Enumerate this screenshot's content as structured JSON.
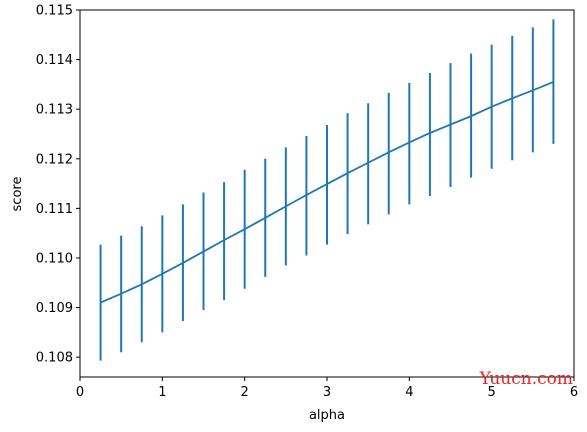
{
  "chart_data": {
    "type": "line",
    "xlabel": "alpha",
    "ylabel": "score",
    "xlim": [
      0,
      6
    ],
    "ylim": [
      0.1076,
      0.115
    ],
    "xticks": [
      0,
      1,
      2,
      3,
      4,
      5,
      6
    ],
    "yticks": [
      0.108,
      0.109,
      0.11,
      0.111,
      0.112,
      0.113,
      0.114,
      0.115
    ],
    "ytick_labels": [
      "0.108",
      "0.109",
      "0.110",
      "0.111",
      "0.112",
      "0.113",
      "0.114",
      "0.115"
    ],
    "grid": false,
    "line_color": "#1f77b4",
    "series": [
      {
        "x": [
          0.25,
          0.5,
          0.75,
          1.0,
          1.25,
          1.5,
          1.75,
          2.0,
          2.25,
          2.5,
          2.75,
          3.0,
          3.25,
          3.5,
          3.75,
          4.0,
          4.25,
          4.5,
          4.75,
          5.0,
          5.25,
          5.5,
          5.75
        ],
        "y": [
          0.1091,
          0.10928,
          0.10947,
          0.10968,
          0.1099,
          0.11013,
          0.11036,
          0.11058,
          0.11081,
          0.11104,
          0.11127,
          0.11149,
          0.11171,
          0.11192,
          0.11213,
          0.11233,
          0.11252,
          0.11269,
          0.11286,
          0.11305,
          0.11322,
          0.11338,
          0.11355
        ],
        "err_low": [
          0.10793,
          0.1081,
          0.1083,
          0.1085,
          0.10873,
          0.10895,
          0.10915,
          0.10938,
          0.10962,
          0.10985,
          0.11005,
          0.11027,
          0.11048,
          0.11068,
          0.11088,
          0.11108,
          0.11125,
          0.11143,
          0.11162,
          0.1118,
          0.11197,
          0.11213,
          0.1123
        ],
        "err_high": [
          0.11027,
          0.11045,
          0.11064,
          0.11086,
          0.11108,
          0.11132,
          0.11153,
          0.11178,
          0.112,
          0.11223,
          0.11246,
          0.11268,
          0.11292,
          0.11312,
          0.11333,
          0.11353,
          0.11373,
          0.11393,
          0.11412,
          0.1143,
          0.11448,
          0.11465,
          0.11481
        ]
      }
    ]
  },
  "watermark": "Yuucn.com"
}
